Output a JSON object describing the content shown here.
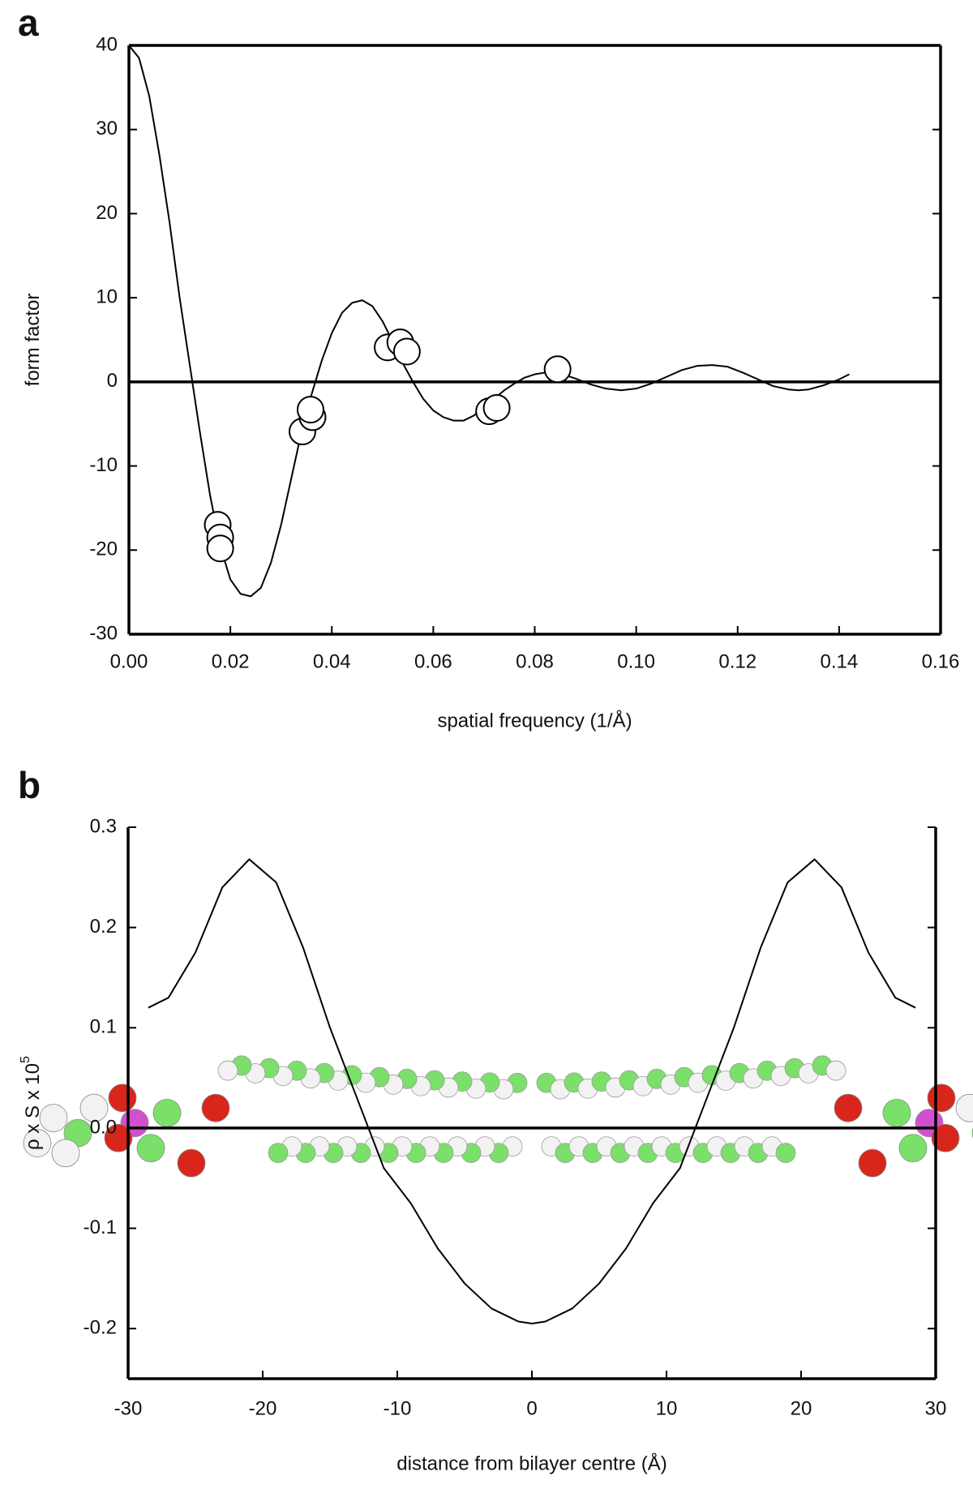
{
  "chart_data": [
    {
      "type": "line",
      "panel_label": "a",
      "x_label": "spatial frequency (1/Å)",
      "y_label": "form factor",
      "xlim": [
        0,
        0.16
      ],
      "ylim": [
        -30,
        40
      ],
      "xticks": [
        {
          "value": 0,
          "label": "0.00"
        },
        {
          "value": 0.02,
          "label": "0.02"
        },
        {
          "value": 0.04,
          "label": "0.04"
        },
        {
          "value": 0.06,
          "label": "0.06"
        },
        {
          "value": 0.08,
          "label": "0.08"
        },
        {
          "value": 0.1,
          "label": "0.10"
        },
        {
          "value": 0.12,
          "label": "0.12"
        },
        {
          "value": 0.14,
          "label": "0.14"
        },
        {
          "value": 0.16,
          "label": "0.16"
        }
      ],
      "yticks": [
        40,
        30,
        20,
        10,
        0,
        -10,
        -20,
        -30
      ],
      "zero_line": true,
      "frame": "box",
      "series": [
        {
          "type": "line",
          "color": "#000000",
          "x": [
            0,
            0.002,
            0.004,
            0.006,
            0.008,
            0.01,
            0.012,
            0.014,
            0.016,
            0.018,
            0.02,
            0.022,
            0.024,
            0.026,
            0.028,
            0.03,
            0.032,
            0.034,
            0.036,
            0.038,
            0.04,
            0.042,
            0.044,
            0.046,
            0.048,
            0.05,
            0.052,
            0.054,
            0.056,
            0.058,
            0.06,
            0.062,
            0.064,
            0.066,
            0.068,
            0.07,
            0.072,
            0.074,
            0.076,
            0.078,
            0.08,
            0.082,
            0.085,
            0.088,
            0.091,
            0.094,
            0.097,
            0.1,
            0.103,
            0.106,
            0.109,
            0.112,
            0.115,
            0.118,
            0.121,
            0.124,
            0.127,
            0.13,
            0.132,
            0.134,
            0.137,
            0.14,
            0.142
          ],
          "values": [
            40,
            38.5,
            34,
            27,
            19,
            10,
            2,
            -6,
            -13.5,
            -19.5,
            -23.5,
            -25.2,
            -25.5,
            -24.5,
            -21.5,
            -17,
            -11.5,
            -6,
            -1.5,
            2.5,
            5.8,
            8.2,
            9.4,
            9.7,
            9,
            7.2,
            4.8,
            2.2,
            0,
            -2,
            -3.4,
            -4.2,
            -4.6,
            -4.6,
            -4,
            -3,
            -2,
            -1,
            -0.2,
            0.5,
            0.9,
            1.1,
            1,
            0.4,
            -0.3,
            -0.8,
            -1,
            -0.8,
            -0.2,
            0.6,
            1.4,
            1.9,
            2,
            1.8,
            1.1,
            0.3,
            -0.5,
            -0.9,
            -1,
            -0.9,
            -0.4,
            0.3,
            0.9
          ]
        },
        {
          "type": "scatter",
          "color": "#ffffff",
          "x": [
            0.0175,
            0.018,
            0.018,
            0.0342,
            0.0362,
            0.0358,
            0.051,
            0.0535,
            0.0548,
            0.071,
            0.0725,
            0.0845
          ],
          "values": [
            -17,
            -18.5,
            -19.8,
            -5.9,
            -4.2,
            -3.3,
            4.1,
            4.7,
            3.6,
            -3.5,
            -3.1,
            1.5
          ]
        }
      ]
    },
    {
      "type": "line",
      "panel_label": "b",
      "x_label": "distance from bilayer centre (Å)",
      "y_label": "ρ x S x 10",
      "y_label_exponent": "5",
      "xlim": [
        -30,
        30
      ],
      "ylim": [
        -0.25,
        0.3
      ],
      "xticks": [
        -30,
        -20,
        -10,
        0,
        10,
        20,
        30
      ],
      "yticks": [
        0.3,
        0.2,
        0.1,
        {
          "value": 0,
          "label": "0.0"
        },
        -0.1,
        -0.2
      ],
      "zero_line": true,
      "frame": "open",
      "series": [
        {
          "type": "line",
          "color": "#000000",
          "x": [
            -28.5,
            -27,
            -25,
            -23,
            -21,
            -19,
            -17,
            -15,
            -13,
            -11,
            -9,
            -7,
            -5,
            -3,
            -1,
            0,
            1,
            3,
            5,
            7,
            9,
            11,
            13,
            15,
            17,
            19,
            21,
            23,
            25,
            27,
            28.5
          ],
          "values": [
            0.12,
            0.13,
            0.175,
            0.24,
            0.268,
            0.245,
            0.18,
            0.1,
            0.03,
            -0.04,
            -0.075,
            -0.12,
            -0.155,
            -0.18,
            -0.193,
            -0.195,
            -0.193,
            -0.18,
            -0.155,
            -0.12,
            -0.075,
            -0.04,
            0.03,
            0.1,
            0.18,
            0.245,
            0.268,
            0.24,
            0.175,
            0.13,
            0.12
          ]
        }
      ]
    }
  ]
}
